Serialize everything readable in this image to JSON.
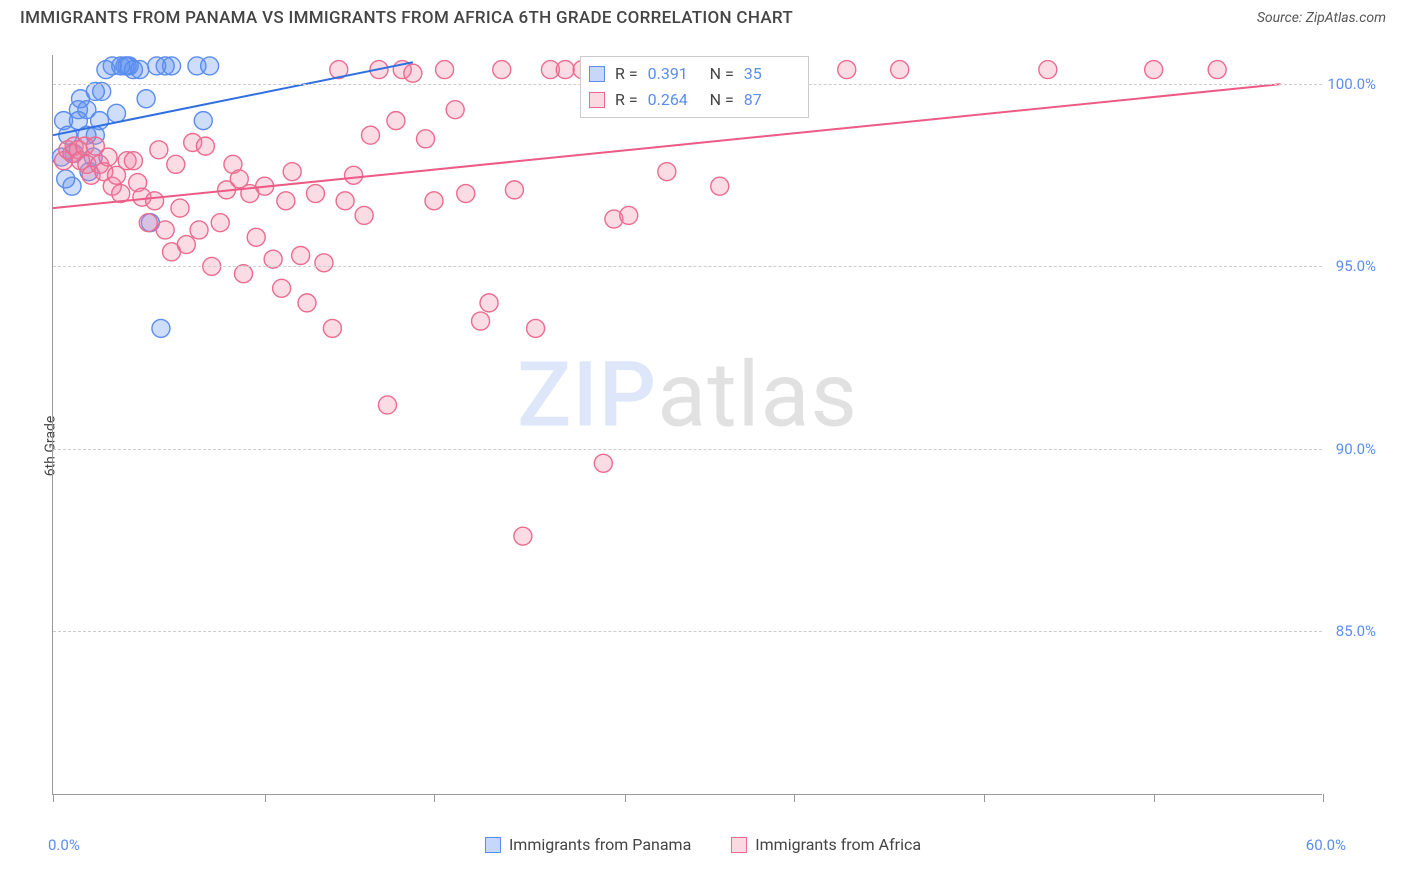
{
  "header": {
    "title": "IMMIGRANTS FROM PANAMA VS IMMIGRANTS FROM AFRICA 6TH GRADE CORRELATION CHART",
    "source": "Source: ZipAtlas.com"
  },
  "chart": {
    "type": "scatter",
    "ylabel": "6th Grade",
    "xlim": [
      0,
      60
    ],
    "ylim": [
      80.5,
      100.8
    ],
    "x_tick_positions": [
      0,
      10,
      18,
      27,
      35,
      44,
      52,
      60
    ],
    "x_axis_labels": {
      "min": "0.0%",
      "max": "60.0%"
    },
    "y_ticks": [
      {
        "value": 100.0,
        "label": "100.0%"
      },
      {
        "value": 95.0,
        "label": "95.0%"
      },
      {
        "value": 90.0,
        "label": "90.0%"
      },
      {
        "value": 85.0,
        "label": "85.0%"
      }
    ],
    "grid_color": "#cccccc",
    "background_color": "#ffffff",
    "marker_radius": 9,
    "marker_stroke_width": 1.4,
    "series": [
      {
        "name": "Immigrants from Panama",
        "color_fill": "rgba(91,141,239,0.30)",
        "color_stroke": "#5b8def",
        "R": "0.391",
        "N": "35",
        "trend": {
          "x1": 0,
          "y1": 98.6,
          "x2": 17,
          "y2": 100.6,
          "color": "#2f6fe0",
          "width": 2
        },
        "points": [
          [
            0.4,
            98.0
          ],
          [
            0.7,
            98.6
          ],
          [
            0.5,
            99.0
          ],
          [
            1.0,
            98.1
          ],
          [
            1.2,
            99.0
          ],
          [
            1.2,
            99.3
          ],
          [
            1.3,
            99.6
          ],
          [
            1.6,
            98.6
          ],
          [
            1.6,
            99.3
          ],
          [
            1.7,
            97.6
          ],
          [
            2.0,
            98.6
          ],
          [
            2.2,
            99.0
          ],
          [
            2.3,
            99.8
          ],
          [
            2.5,
            100.4
          ],
          [
            2.8,
            100.5
          ],
          [
            3.0,
            99.2
          ],
          [
            3.2,
            100.5
          ],
          [
            3.4,
            100.5
          ],
          [
            3.6,
            100.5
          ],
          [
            3.8,
            100.4
          ],
          [
            4.1,
            100.4
          ],
          [
            4.4,
            99.6
          ],
          [
            4.6,
            96.2
          ],
          [
            4.9,
            100.5
          ],
          [
            5.3,
            100.5
          ],
          [
            5.6,
            100.5
          ],
          [
            6.8,
            100.5
          ],
          [
            7.1,
            99.0
          ],
          [
            7.4,
            100.5
          ],
          [
            5.1,
            93.3
          ],
          [
            0.9,
            97.2
          ],
          [
            0.6,
            97.4
          ],
          [
            1.9,
            98.0
          ],
          [
            3.5,
            100.5
          ],
          [
            2.0,
            99.8
          ]
        ]
      },
      {
        "name": "Immigrants from Africa",
        "color_fill": "rgba(240,128,160,0.28)",
        "color_stroke": "#ec6b8f",
        "R": "0.264",
        "N": "87",
        "trend": {
          "x1": 0,
          "y1": 96.6,
          "x2": 58,
          "y2": 100.0,
          "color": "#ec5a85",
          "width": 2
        },
        "points": [
          [
            0.5,
            97.9
          ],
          [
            0.7,
            98.2
          ],
          [
            0.9,
            98.1
          ],
          [
            1.0,
            98.3
          ],
          [
            1.2,
            98.2
          ],
          [
            1.3,
            97.9
          ],
          [
            1.5,
            98.3
          ],
          [
            1.6,
            97.8
          ],
          [
            1.8,
            97.5
          ],
          [
            2.0,
            98.3
          ],
          [
            2.2,
            97.8
          ],
          [
            2.4,
            97.6
          ],
          [
            2.6,
            98.0
          ],
          [
            2.8,
            97.2
          ],
          [
            3.0,
            97.5
          ],
          [
            3.2,
            97.0
          ],
          [
            3.5,
            97.9
          ],
          [
            3.8,
            97.9
          ],
          [
            4.0,
            97.3
          ],
          [
            4.2,
            96.9
          ],
          [
            4.5,
            96.2
          ],
          [
            4.8,
            96.8
          ],
          [
            5.0,
            98.2
          ],
          [
            5.3,
            96.0
          ],
          [
            5.6,
            95.4
          ],
          [
            5.8,
            97.8
          ],
          [
            6.0,
            96.6
          ],
          [
            6.3,
            95.6
          ],
          [
            6.6,
            98.4
          ],
          [
            6.9,
            96.0
          ],
          [
            7.2,
            98.3
          ],
          [
            7.5,
            95.0
          ],
          [
            7.9,
            96.2
          ],
          [
            8.2,
            97.1
          ],
          [
            8.5,
            97.8
          ],
          [
            8.8,
            97.4
          ],
          [
            9.0,
            94.8
          ],
          [
            9.3,
            97.0
          ],
          [
            9.6,
            95.8
          ],
          [
            10.0,
            97.2
          ],
          [
            10.4,
            95.2
          ],
          [
            10.8,
            94.4
          ],
          [
            11.0,
            96.8
          ],
          [
            11.3,
            97.6
          ],
          [
            11.7,
            95.3
          ],
          [
            12.0,
            94.0
          ],
          [
            12.4,
            97.0
          ],
          [
            12.8,
            95.1
          ],
          [
            13.2,
            93.3
          ],
          [
            13.5,
            100.4
          ],
          [
            13.8,
            96.8
          ],
          [
            14.2,
            97.5
          ],
          [
            14.7,
            96.4
          ],
          [
            15.0,
            98.6
          ],
          [
            15.4,
            100.4
          ],
          [
            15.8,
            91.2
          ],
          [
            16.2,
            99.0
          ],
          [
            16.5,
            100.4
          ],
          [
            17.0,
            100.3
          ],
          [
            17.6,
            98.5
          ],
          [
            18.0,
            96.8
          ],
          [
            18.5,
            100.4
          ],
          [
            19.0,
            99.3
          ],
          [
            19.5,
            97.0
          ],
          [
            20.2,
            93.5
          ],
          [
            20.6,
            94.0
          ],
          [
            21.2,
            100.4
          ],
          [
            21.8,
            97.1
          ],
          [
            22.2,
            87.6
          ],
          [
            22.8,
            93.3
          ],
          [
            23.5,
            100.4
          ],
          [
            24.2,
            100.4
          ],
          [
            25.0,
            100.4
          ],
          [
            26.0,
            89.6
          ],
          [
            26.5,
            96.3
          ],
          [
            27.2,
            96.4
          ],
          [
            28.0,
            100.4
          ],
          [
            29.0,
            97.6
          ],
          [
            30.0,
            100.4
          ],
          [
            31.5,
            97.2
          ],
          [
            33.0,
            100.4
          ],
          [
            34.5,
            100.4
          ],
          [
            37.5,
            100.4
          ],
          [
            40.0,
            100.4
          ],
          [
            47.0,
            100.4
          ],
          [
            52.0,
            100.4
          ],
          [
            55.0,
            100.4
          ]
        ]
      }
    ],
    "legend_bottom": [
      {
        "swatch": "blue",
        "label": "Immigrants from Panama"
      },
      {
        "swatch": "pink",
        "label": "Immigrants from Africa"
      }
    ],
    "watermark": {
      "part1": "ZIP",
      "part2": "atlas"
    }
  }
}
